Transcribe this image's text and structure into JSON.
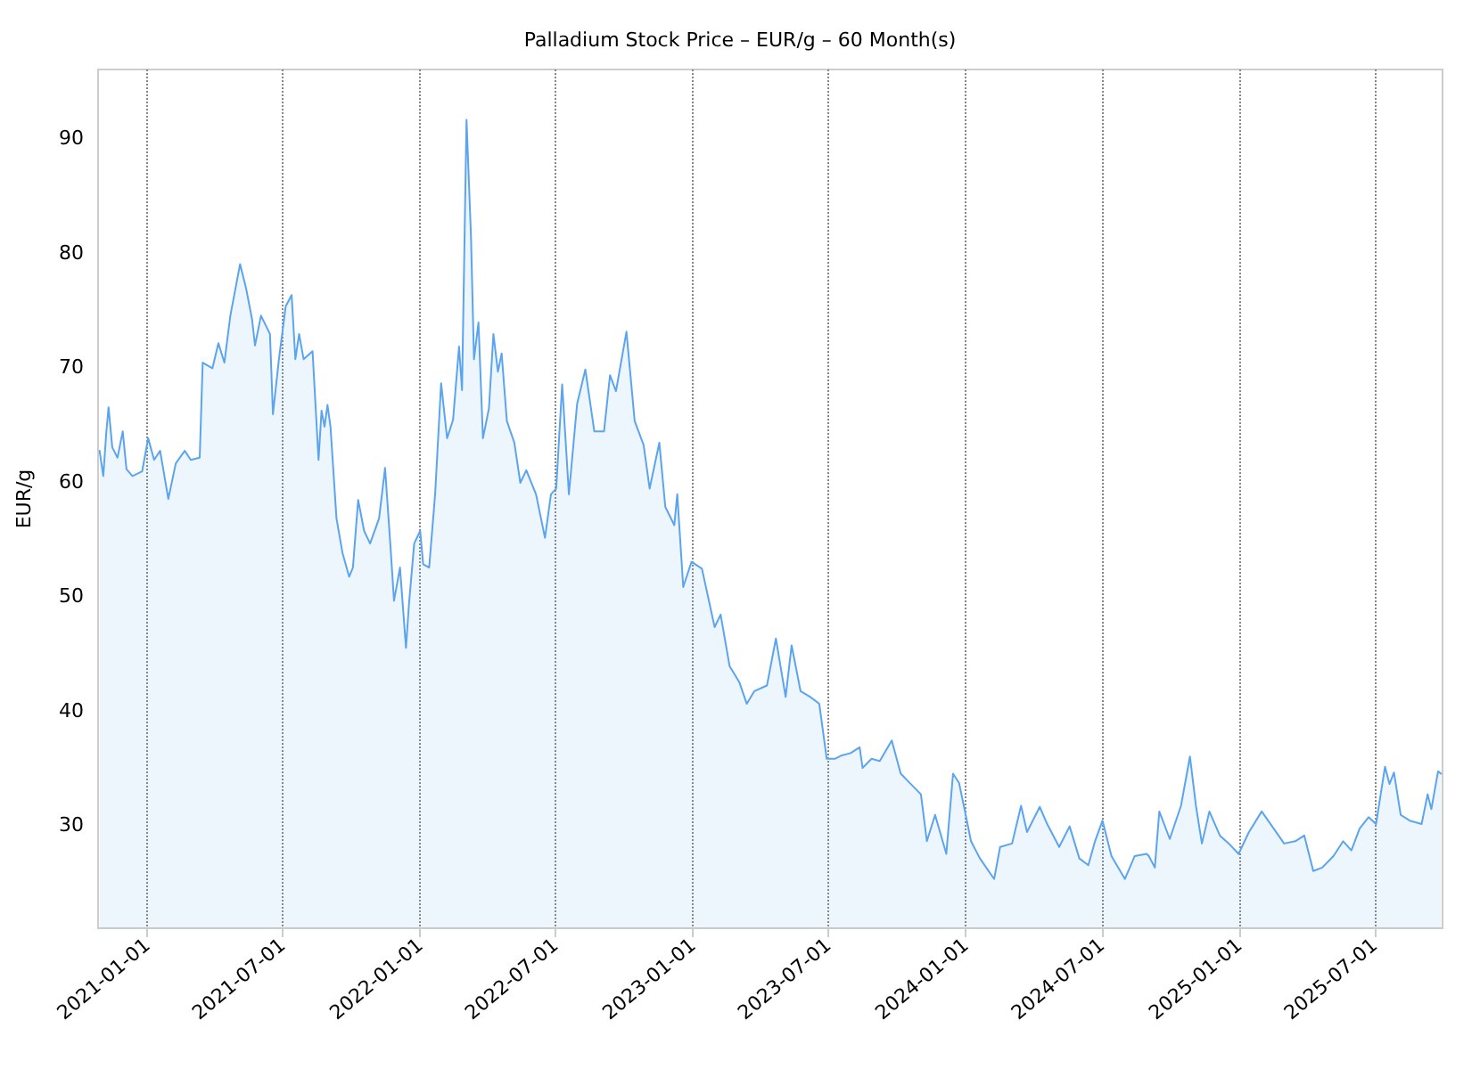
{
  "chart_data": {
    "type": "area",
    "title": "Palladium Stock Price – EUR/g – 60 Month(s)",
    "ylabel": "EUR/g",
    "xlim": [
      "2020-10-27",
      "2025-09-30"
    ],
    "ylim": [
      21,
      96
    ],
    "xticks": [
      "2021-01-01",
      "2021-07-01",
      "2022-01-01",
      "2022-07-01",
      "2023-01-01",
      "2023-07-01",
      "2024-01-01",
      "2024-07-01",
      "2025-01-01",
      "2025-07-01"
    ],
    "yticks": [
      30,
      40,
      50,
      60,
      70,
      80,
      90
    ],
    "grid": "x",
    "marker": "none",
    "line_style": "solid",
    "series": [
      {
        "color": "#5ba4ef",
        "x": [
          "2020-10-29",
          "2020-11-03",
          "2020-11-07",
          "2020-11-10",
          "2020-11-15",
          "2020-11-22",
          "2020-11-29",
          "2020-12-04",
          "2020-12-12",
          "2020-12-25",
          "2021-01-02",
          "2021-01-10",
          "2021-01-18",
          "2021-01-29",
          "2021-02-08",
          "2021-02-20",
          "2021-02-28",
          "2021-03-12",
          "2021-03-16",
          "2021-03-29",
          "2021-04-06",
          "2021-04-14",
          "2021-04-22",
          "2021-05-05",
          "2021-05-13",
          "2021-05-21",
          "2021-05-25",
          "2021-06-02",
          "2021-06-14",
          "2021-06-18",
          "2021-06-26",
          "2021-07-05",
          "2021-07-13",
          "2021-07-18",
          "2021-07-23",
          "2021-07-29",
          "2021-08-10",
          "2021-08-18",
          "2021-08-22",
          "2021-08-26",
          "2021-08-30",
          "2021-09-03",
          "2021-09-11",
          "2021-09-19",
          "2021-09-28",
          "2021-10-03",
          "2021-10-10",
          "2021-10-18",
          "2021-10-26",
          "2021-11-07",
          "2021-11-15",
          "2021-11-22",
          "2021-11-27",
          "2021-12-05",
          "2021-12-13",
          "2021-12-17",
          "2021-12-24",
          "2022-01-01",
          "2022-01-05",
          "2022-01-13",
          "2022-01-21",
          "2022-01-29",
          "2022-02-06",
          "2022-02-14",
          "2022-02-22",
          "2022-02-26",
          "2022-03-04",
          "2022-03-10",
          "2022-03-14",
          "2022-03-20",
          "2022-03-26",
          "2022-04-03",
          "2022-04-09",
          "2022-04-15",
          "2022-04-20",
          "2022-04-27",
          "2022-05-07",
          "2022-05-15",
          "2022-05-23",
          "2022-06-05",
          "2022-06-17",
          "2022-06-25",
          "2022-07-02",
          "2022-07-10",
          "2022-07-19",
          "2022-07-30",
          "2022-08-10",
          "2022-08-22",
          "2022-09-04",
          "2022-09-12",
          "2022-09-20",
          "2022-10-04",
          "2022-10-15",
          "2022-10-27",
          "2022-11-04",
          "2022-11-17",
          "2022-11-25",
          "2022-12-07",
          "2022-12-11",
          "2022-12-19",
          "2022-12-30",
          "2023-01-13",
          "2023-01-30",
          "2023-02-07",
          "2023-02-19",
          "2023-03-04",
          "2023-03-14",
          "2023-03-24",
          "2023-04-10",
          "2023-04-22",
          "2023-05-05",
          "2023-05-13",
          "2023-05-25",
          "2023-06-07",
          "2023-06-19",
          "2023-06-29",
          "2023-07-10",
          "2023-07-19",
          "2023-07-31",
          "2023-08-12",
          "2023-08-16",
          "2023-08-28",
          "2023-09-08",
          "2023-09-24",
          "2023-10-06",
          "2023-10-21",
          "2023-11-02",
          "2023-11-10",
          "2023-11-21",
          "2023-12-06",
          "2023-12-15",
          "2023-12-23",
          "2023-12-31",
          "2024-01-08",
          "2024-01-20",
          "2024-02-08",
          "2024-02-16",
          "2024-03-03",
          "2024-03-15",
          "2024-03-23",
          "2024-04-09",
          "2024-04-19",
          "2024-05-05",
          "2024-05-19",
          "2024-06-01",
          "2024-06-13",
          "2024-06-22",
          "2024-07-02",
          "2024-07-14",
          "2024-08-01",
          "2024-08-14",
          "2024-08-30",
          "2024-09-02",
          "2024-09-10",
          "2024-09-16",
          "2024-09-30",
          "2024-10-15",
          "2024-10-27",
          "2024-11-04",
          "2024-11-12",
          "2024-11-22",
          "2024-12-06",
          "2024-12-18",
          "2024-12-31",
          "2025-01-14",
          "2025-01-31",
          "2025-02-14",
          "2025-03-02",
          "2025-03-17",
          "2025-03-29",
          "2025-04-10",
          "2025-04-22",
          "2025-05-07",
          "2025-05-20",
          "2025-05-31",
          "2025-06-11",
          "2025-06-23",
          "2025-07-03",
          "2025-07-15",
          "2025-07-21",
          "2025-07-27",
          "2025-08-05",
          "2025-08-17",
          "2025-09-02",
          "2025-09-10",
          "2025-09-15",
          "2025-09-24",
          "2025-09-28"
        ],
        "values": [
          62.7,
          60.5,
          64.3,
          66.5,
          63,
          62.1,
          64.4,
          61.1,
          60.5,
          60.9,
          63.8,
          61.9,
          62.7,
          58.5,
          61.6,
          62.7,
          61.9,
          62.1,
          70.4,
          69.9,
          72.1,
          70.4,
          74.5,
          79.0,
          76.9,
          74.2,
          71.9,
          74.5,
          72.9,
          65.9,
          70.7,
          75.3,
          76.3,
          70.7,
          72.9,
          70.7,
          71.4,
          61.9,
          66.2,
          64.8,
          66.7,
          64.8,
          56.8,
          53.8,
          51.7,
          52.5,
          58.4,
          55.7,
          54.6,
          56.8,
          61.2,
          54.6,
          49.6,
          52.5,
          45.5,
          49.3,
          54.6,
          55.7,
          52.8,
          52.5,
          58.9,
          68.6,
          63.8,
          65.4,
          71.8,
          68.0,
          91.6,
          81.4,
          70.7,
          73.9,
          63.8,
          66.4,
          72.9,
          69.6,
          71.2,
          65.3,
          63.4,
          59.9,
          61.0,
          58.9,
          55.1,
          58.9,
          59.4,
          68.5,
          58.9,
          66.8,
          69.8,
          64.4,
          64.4,
          69.3,
          67.9,
          73.1,
          65.3,
          63.2,
          59.4,
          63.4,
          57.8,
          56.2,
          58.9,
          50.8,
          53.0,
          52.4,
          47.3,
          48.4,
          43.9,
          42.5,
          40.6,
          41.7,
          42.2,
          46.3,
          41.2,
          45.7,
          41.7,
          41.2,
          40.6,
          35.8,
          35.8,
          36.1,
          36.3,
          36.8,
          35.0,
          35.8,
          35.6,
          37.4,
          34.5,
          33.5,
          32.7,
          28.6,
          30.9,
          27.5,
          34.5,
          33.7,
          31.2,
          28.6,
          27.1,
          25.3,
          28.1,
          28.4,
          31.7,
          29.4,
          31.6,
          30.1,
          28.1,
          29.9,
          27.1,
          26.5,
          28.6,
          30.4,
          27.3,
          25.3,
          27.3,
          27.5,
          27.3,
          26.3,
          31.2,
          28.8,
          31.7,
          36.0,
          31.7,
          28.4,
          31.2,
          29.1,
          28.4,
          27.5,
          29.4,
          31.2,
          29.9,
          28.4,
          28.6,
          29.1,
          26.0,
          26.3,
          27.3,
          28.6,
          27.8,
          29.7,
          30.7,
          30.1,
          35.1,
          33.6,
          34.6,
          30.9,
          30.4,
          30.1,
          32.7,
          31.4,
          34.7,
          34.5
        ]
      }
    ]
  }
}
